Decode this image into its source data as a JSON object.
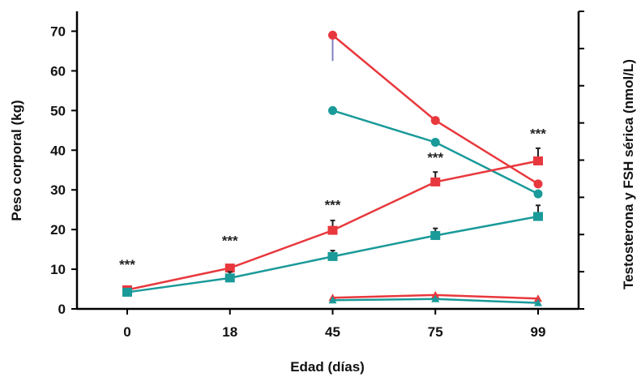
{
  "chart_data": {
    "type": "line",
    "xlabel": "Edad (días)",
    "ylabel": "Peso corporal (kg)",
    "y2label": "Testosterona y FSH sérica (nmol/L)",
    "categories": [
      "0",
      "18",
      "45",
      "75",
      "99"
    ],
    "ylim": [
      0,
      75
    ],
    "yticks": [
      "0",
      "10",
      "20",
      "30",
      "40",
      "50",
      "60",
      "70"
    ],
    "y2ticks_count": 8,
    "significance": [
      {
        "category": "0",
        "label": "***",
        "y": 10
      },
      {
        "category": "18",
        "label": "***",
        "y": 16
      },
      {
        "category": "45",
        "label": "***",
        "y": 25
      },
      {
        "category": "75",
        "label": "***",
        "y": 37
      },
      {
        "category": "99",
        "label": "***",
        "y": 43
      }
    ],
    "series": [
      {
        "color": "#e8383d",
        "marker": "circle",
        "values": [
          null,
          null,
          69,
          47.5,
          31.5
        ],
        "errors": [
          null,
          null,
          0,
          0,
          0
        ],
        "error_color": "#8080c0",
        "error_down": [
          null,
          null,
          6.5,
          0,
          0
        ]
      },
      {
        "color": "#1a9a99",
        "marker": "circle",
        "values": [
          null,
          null,
          50,
          42,
          29
        ],
        "errors": [
          null,
          null,
          0,
          0,
          0
        ]
      },
      {
        "color": "#e8383d",
        "marker": "square",
        "values": [
          4.8,
          10.3,
          19.8,
          32,
          37.3
        ],
        "errors": [
          0.5,
          0.8,
          2.5,
          2.5,
          3.2
        ]
      },
      {
        "color": "#1a9a99",
        "marker": "square",
        "values": [
          4.2,
          7.8,
          13.2,
          18.5,
          23.3
        ],
        "errors": [
          0.5,
          1.5,
          1.5,
          1.8,
          2.8
        ]
      },
      {
        "color": "#e8383d",
        "marker": "triangle",
        "values": [
          null,
          null,
          2.8,
          3.5,
          2.6
        ],
        "errors": [
          null,
          null,
          0,
          0,
          0
        ]
      },
      {
        "color": "#1a9a99",
        "marker": "triangle",
        "values": [
          null,
          null,
          2.2,
          2.5,
          1.5
        ],
        "errors": [
          null,
          null,
          0,
          0,
          0
        ]
      }
    ]
  }
}
